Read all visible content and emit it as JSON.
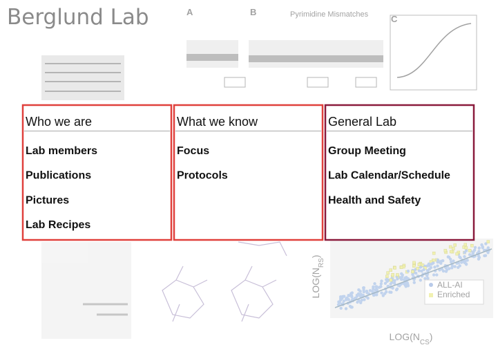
{
  "header": {
    "title": "Berglund Lab"
  },
  "menus": [
    {
      "heading": "Who we are",
      "links": [
        "Lab members",
        "Publications",
        "Pictures",
        "Lab Recipes"
      ]
    },
    {
      "heading": "What we know",
      "links": [
        "Focus",
        "Protocols"
      ]
    },
    {
      "heading": "General Lab",
      "links": [
        "Group Meeting",
        "Lab Calendar/Schedule",
        "Health and Safety"
      ]
    }
  ],
  "figures": {
    "panel_labels": [
      "A",
      "B",
      "C"
    ],
    "mismatch_title": "Pyrimidine Mismatches",
    "scatter_legend": [
      "ALL-AI",
      "Enriched"
    ],
    "scatter_x_label": [
      "LOG(N",
      "CS",
      ")"
    ],
    "scatter_y_label": [
      "LOG(N",
      "RS",
      ")"
    ]
  }
}
